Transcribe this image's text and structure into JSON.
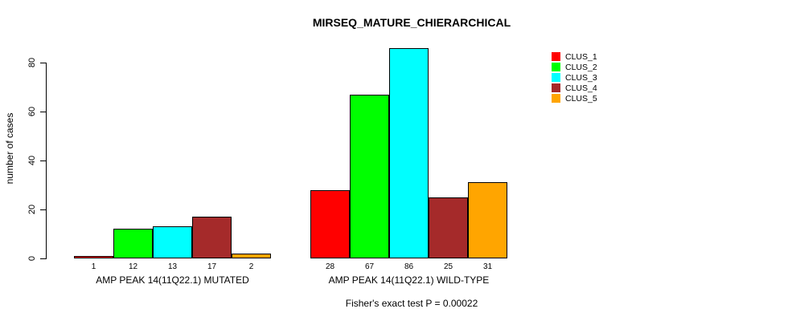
{
  "chart_data": {
    "type": "bar",
    "title": "MIRSEQ_MATURE_CHIERARCHICAL",
    "ylabel": "number of cases",
    "xlabel": "",
    "ylim": [
      0,
      86
    ],
    "yticks": [
      0,
      20,
      40,
      60,
      80
    ],
    "grid": false,
    "legend_position": "right",
    "annotation": "Fisher's exact test P = 0.00022",
    "legend": [
      {
        "name": "CLUS_1",
        "color": "#FF0000"
      },
      {
        "name": "CLUS_2",
        "color": "#00FF00"
      },
      {
        "name": "CLUS_3",
        "color": "#00FFFF"
      },
      {
        "name": "CLUS_4",
        "color": "#A52A2A"
      },
      {
        "name": "CLUS_5",
        "color": "#FFA500"
      }
    ],
    "groups": [
      {
        "label": "AMP PEAK 14(11Q22.1) MUTATED",
        "categories": [
          "CLUS_1",
          "CLUS_2",
          "CLUS_3",
          "CLUS_4",
          "CLUS_5"
        ],
        "values": [
          1,
          12,
          13,
          17,
          2
        ]
      },
      {
        "label": "AMP PEAK 14(11Q22.1) WILD-TYPE",
        "categories": [
          "CLUS_1",
          "CLUS_2",
          "CLUS_3",
          "CLUS_4",
          "CLUS_5"
        ],
        "values": [
          28,
          67,
          86,
          25,
          31
        ]
      }
    ],
    "bar_border_color": "#000000",
    "axis_color": "#000000"
  }
}
